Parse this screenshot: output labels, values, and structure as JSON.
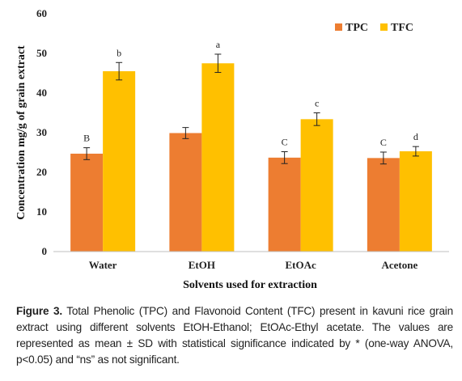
{
  "chart_data": {
    "type": "bar",
    "categories": [
      "Water",
      "EtOH",
      "EtOAc",
      "Acetone"
    ],
    "series": [
      {
        "name": "TPC",
        "color": "#ED7D31",
        "values": [
          24.7,
          29.9,
          23.7,
          23.6
        ],
        "errors": [
          1.5,
          1.4,
          1.5,
          1.5
        ],
        "labels": [
          "B",
          "",
          "C",
          "C"
        ]
      },
      {
        "name": "TFC",
        "color": "#FFC000",
        "values": [
          45.5,
          47.5,
          33.4,
          25.3
        ],
        "errors": [
          2.2,
          2.3,
          1.6,
          1.2
        ],
        "labels": [
          "b",
          "a",
          "c",
          "d"
        ]
      }
    ],
    "ylim": [
      0,
      60
    ],
    "yticks": [
      "0",
      "10",
      "20",
      "30",
      "40",
      "50",
      "60"
    ],
    "ylabel": "Concentration mg/g of grain extract",
    "xlabel": "Solvents used for extraction",
    "legend_position": "top-right",
    "grid": false
  },
  "caption": {
    "label": "Figure 3.",
    "text": " Total Phenolic (TPC) and Flavonoid Content (TFC) present in kavuni rice grain extract using different solvents EtOH-Ethanol; EtOAc-Ethyl acetate. The values are represented as mean ± SD with statistical significance indicated by * (one-way ANOVA, p<0.05) and “ns” as not significant."
  }
}
